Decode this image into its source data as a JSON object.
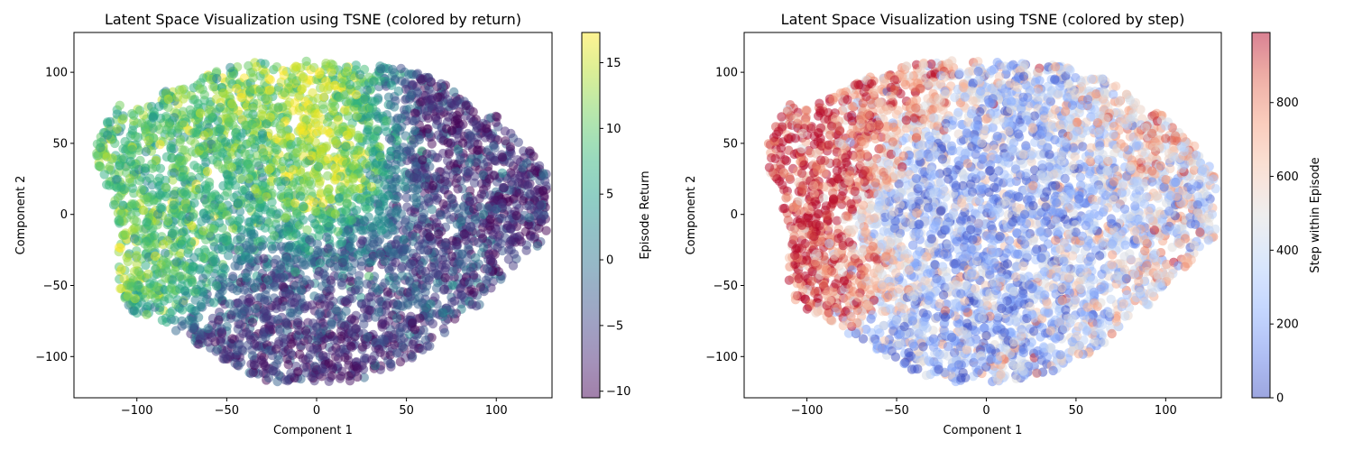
{
  "chart_data": [
    {
      "type": "scatter",
      "title": "Latent Space Visualization using TSNE (colored by return)",
      "xlabel": "Component 1",
      "ylabel": "Component 2",
      "xlim": [
        -135,
        131
      ],
      "ylim": [
        -129,
        128
      ],
      "xticks": [
        -100,
        -50,
        0,
        50,
        100
      ],
      "yticks": [
        -100,
        -50,
        0,
        50,
        100
      ],
      "xtick_labels": [
        "−100",
        "−50",
        "0",
        "50",
        "100"
      ],
      "ytick_labels": [
        "−100",
        "−50",
        "0",
        "50",
        "100"
      ],
      "grid": false,
      "colormap": "viridis",
      "point_alpha": 0.5,
      "colorbar": {
        "label": "Episode Return",
        "range": [
          -10.5,
          17.3
        ],
        "ticks": [
          -10,
          -5,
          0,
          5,
          10,
          15
        ],
        "tick_labels": [
          "−10",
          "−5",
          "0",
          "5",
          "10",
          "15"
        ]
      },
      "regions": [
        {
          "center": [
            -105,
            -10
          ],
          "spread": [
            14,
            22
          ],
          "value": 11.5
        },
        {
          "center": [
            -85,
            20
          ],
          "spread": [
            20,
            25
          ],
          "value": 8
        },
        {
          "center": [
            -72,
            55
          ],
          "spread": [
            18,
            18
          ],
          "value": 9
        },
        {
          "center": [
            -75,
            -45
          ],
          "spread": [
            18,
            18
          ],
          "value": 10.5
        },
        {
          "center": [
            -50,
            80
          ],
          "spread": [
            15,
            12
          ],
          "value": 11
        },
        {
          "center": [
            5,
            35
          ],
          "spread": [
            30,
            35
          ],
          "value": 16
        },
        {
          "center": [
            25,
            60
          ],
          "spread": [
            15,
            20
          ],
          "value": 14
        },
        {
          "center": [
            60,
            60
          ],
          "spread": [
            25,
            25
          ],
          "value": -9
        },
        {
          "center": [
            75,
            0
          ],
          "spread": [
            30,
            40
          ],
          "value": -7
        },
        {
          "center": [
            30,
            -40
          ],
          "spread": [
            45,
            30
          ],
          "value": -3
        },
        {
          "center": [
            -30,
            -70
          ],
          "spread": [
            30,
            25
          ],
          "value": -6
        },
        {
          "center": [
            -30,
            20
          ],
          "spread": [
            20,
            30
          ],
          "value": 6
        },
        {
          "center": [
            10,
            -90
          ],
          "spread": [
            30,
            15
          ],
          "value": -9
        }
      ]
    },
    {
      "type": "scatter",
      "title": "Latent Space Visualization using TSNE (colored by step)",
      "xlabel": "Component 1",
      "ylabel": "Component 2",
      "xlim": [
        -135,
        131
      ],
      "ylim": [
        -129,
        128
      ],
      "xticks": [
        -100,
        -50,
        0,
        50,
        100
      ],
      "yticks": [
        -100,
        -50,
        0,
        50,
        100
      ],
      "xtick_labels": [
        "−100",
        "−50",
        "0",
        "50",
        "100"
      ],
      "ytick_labels": [
        "−100",
        "−50",
        "0",
        "50",
        "100"
      ],
      "grid": false,
      "colormap": "coolwarm",
      "point_alpha": 0.5,
      "colorbar": {
        "label": "Step within Episode",
        "range": [
          0,
          990
        ],
        "ticks": [
          0,
          200,
          400,
          600,
          800
        ],
        "tick_labels": [
          "0",
          "200",
          "400",
          "600",
          "800"
        ]
      },
      "regions": [
        {
          "center": [
            -105,
            0
          ],
          "spread": [
            15,
            25
          ],
          "value": 960
        },
        {
          "center": [
            -85,
            40
          ],
          "spread": [
            20,
            20
          ],
          "value": 880
        },
        {
          "center": [
            -75,
            -45
          ],
          "spread": [
            18,
            18
          ],
          "value": 860
        },
        {
          "center": [
            -40,
            80
          ],
          "spread": [
            25,
            15
          ],
          "value": 800
        },
        {
          "center": [
            10,
            30
          ],
          "spread": [
            35,
            45
          ],
          "value": 200
        },
        {
          "center": [
            40,
            -20
          ],
          "spread": [
            40,
            40
          ],
          "value": 350
        },
        {
          "center": [
            -20,
            -60
          ],
          "spread": [
            30,
            30
          ],
          "value": 250
        },
        {
          "center": [
            70,
            60
          ],
          "spread": [
            25,
            25
          ],
          "value": 600
        },
        {
          "center": [
            90,
            -40
          ],
          "spread": [
            20,
            30
          ],
          "value": 500
        }
      ]
    }
  ]
}
